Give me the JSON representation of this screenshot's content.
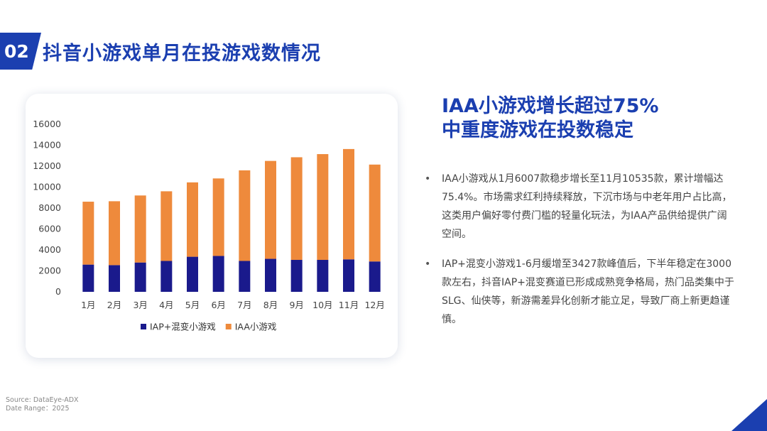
{
  "header": {
    "badge": "02",
    "title": "抖音小游戏单月在投游戏数情况"
  },
  "headline": {
    "line1": "IAA小游戏增长超过75%",
    "line2": "中重度游戏在投数稳定"
  },
  "bullets": [
    {
      "symbol": "•",
      "text": "IAA小游戏从1月6007款稳步增长至11月10535款，累计增幅达75.4%。市场需求红利持续释放，下沉市场与中老年用户占比高，这类用户偏好零付费门槛的轻量化玩法，为IAA产品供给提供广阔空间。"
    },
    {
      "symbol": "•",
      "text": "IAP+混变小游戏1-6月缓增至3427款峰值后，下半年稳定在3000款左右，抖音IAP+混变赛道已形成成熟竞争格局，热门品类集中于SLG、仙侠等，新游需差异化创新才能立足，导致厂商上新更趋谨慎。"
    }
  ],
  "source": {
    "line1": "Source: DataEye-ADX",
    "line2": "Date Range：2025"
  },
  "colors": {
    "brand": "#1b3fb0",
    "iap": "#1a1a8c",
    "iaa": "#ee8a3c"
  },
  "chart_data": {
    "type": "bar",
    "stacked": true,
    "categories": [
      "1月",
      "2月",
      "3月",
      "4月",
      "5月",
      "6月",
      "7月",
      "8月",
      "9月",
      "10月",
      "11月",
      "12月"
    ],
    "series": [
      {
        "name": "IAP+混变小游戏",
        "color": "#1a1a8c",
        "values": [
          2600,
          2550,
          2800,
          2950,
          3350,
          3427,
          2950,
          3150,
          3050,
          3050,
          3100,
          2900
        ]
      },
      {
        "name": "IAA小游戏",
        "color": "#ee8a3c",
        "values": [
          6007,
          6100,
          6400,
          6650,
          7100,
          7400,
          8650,
          9350,
          9800,
          10100,
          10535,
          9250
        ]
      }
    ],
    "y_ticks": [
      "0",
      "2000",
      "4000",
      "6000",
      "8000",
      "10000",
      "12000",
      "14000",
      "16000"
    ],
    "ylim": [
      0,
      16000
    ],
    "grid": false,
    "legend_position": "bottom"
  }
}
